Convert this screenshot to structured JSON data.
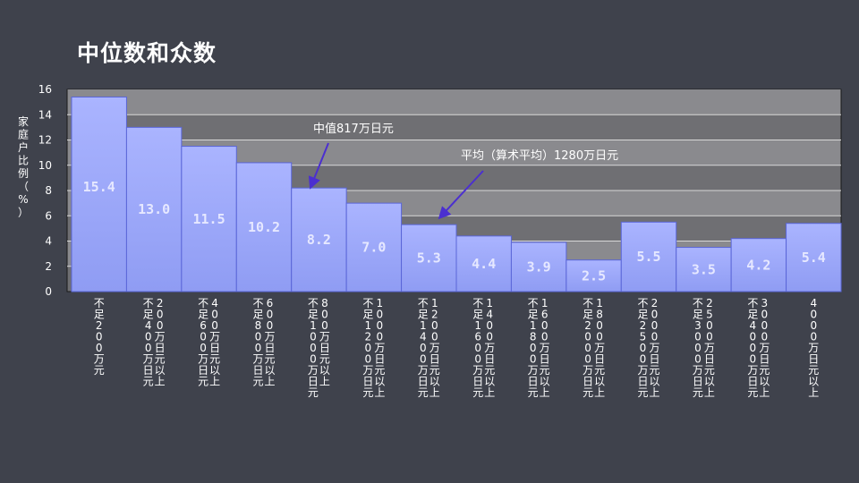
{
  "title": "中位数和众数",
  "colors": {
    "background": "#3f424c",
    "plot_band_dark": "#6f6f73",
    "plot_band_light": "#8a8a8e",
    "bar_top": "#aab4ff",
    "bar_bottom": "#8f9cf3",
    "bar_stroke": "#5a66d8",
    "arrow": "#4b2fd0"
  },
  "chart_data": {
    "type": "bar",
    "ylabel": "家庭户比例（%）",
    "ylim": [
      0,
      16
    ],
    "yticks": [
      "0",
      "2",
      "4",
      "6",
      "8",
      "10",
      "12",
      "14",
      "16"
    ],
    "categories": [
      "不足200万元",
      "200万日元以上，不足400万日元",
      "400万日元以上，不足600万日元",
      "600万日元以上，不足800万日元",
      "800万日元以上，不足1000万日元",
      "1000万日元以上，不足1200万日元",
      "1200万日元以上，不足1400万日元",
      "1400万日元以上，不足1600万日元",
      "1600万日元以上，不足1800万日元",
      "1800万日元以上，不足2000万日元",
      "2000万日元以上，不足2500万日元",
      "2500万日元以上，不足3000万日元",
      "3000万日元以上，不足4000万日元",
      "4000万日元以上"
    ],
    "values": [
      15.4,
      13.0,
      11.5,
      10.2,
      8.2,
      7.0,
      5.3,
      4.4,
      3.9,
      2.5,
      5.5,
      3.5,
      4.2,
      5.4
    ],
    "data_labels": [
      "15.4",
      "13.0",
      "11.5",
      "10.2",
      "8.2",
      "7.0",
      "5.3",
      "4.4",
      "3.9",
      "2.5",
      "5.5",
      "3.5",
      "4.2",
      "5.4"
    ],
    "annotations": [
      {
        "text": "中值817万日元",
        "target_bar": 4
      },
      {
        "text": "平均（算术平均）1280万日元",
        "target_bar": 6
      }
    ],
    "grid": true,
    "legend": "none"
  }
}
